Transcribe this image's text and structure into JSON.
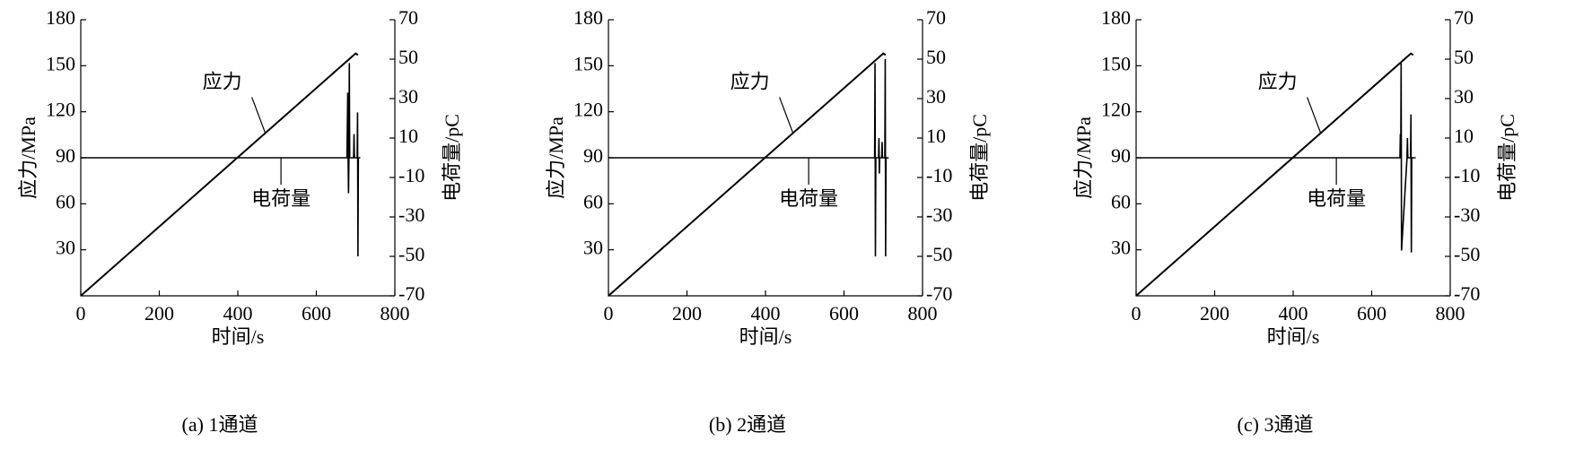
{
  "chart_data": [
    {
      "type": "line",
      "caption": "(a)  1通道",
      "x_label": "时间/s",
      "y_label": "应力/MPa",
      "y2_label": "电荷量/pC",
      "xlim": [
        0,
        800
      ],
      "xticks": [
        0,
        200,
        400,
        600,
        800
      ],
      "ylim": [
        0,
        180
      ],
      "yticks": [
        30,
        60,
        90,
        120,
        150,
        180
      ],
      "y2lim": [
        -70,
        70
      ],
      "y2ticks": [
        -70,
        -50,
        -30,
        -10,
        10,
        30,
        50,
        70
      ],
      "series": [
        {
          "name": "应力",
          "color": "#000000",
          "x": [
            0,
            700,
            706
          ],
          "values": [
            0,
            158,
            157
          ]
        },
        {
          "name": "电荷量",
          "color": "#000000",
          "axis": "y2",
          "x": [
            0,
            678,
            680,
            681,
            682,
            683,
            684,
            685,
            695,
            696,
            697,
            704,
            705,
            706,
            707,
            712
          ],
          "values": [
            0,
            0,
            33,
            0,
            -18,
            0,
            48,
            0,
            0,
            12,
            0,
            0,
            23,
            -50,
            0,
            0
          ]
        }
      ]
    },
    {
      "type": "line",
      "caption": "(b)  2通道",
      "x_label": "时间/s",
      "y_label": "应力/MPa",
      "y2_label": "电荷量/pC",
      "xlim": [
        0,
        800
      ],
      "xticks": [
        0,
        200,
        400,
        600,
        800
      ],
      "ylim": [
        0,
        180
      ],
      "yticks": [
        30,
        60,
        90,
        120,
        150,
        180
      ],
      "y2lim": [
        -70,
        70
      ],
      "y2ticks": [
        -70,
        -50,
        -30,
        -10,
        10,
        30,
        50,
        70
      ],
      "series": [
        {
          "name": "应力",
          "color": "#000000",
          "x": [
            0,
            700,
            706
          ],
          "values": [
            0,
            158,
            157
          ]
        },
        {
          "name": "电荷量",
          "color": "#000000",
          "axis": "y2",
          "x": [
            0,
            678,
            679,
            680,
            681,
            688,
            689,
            690,
            691,
            696,
            697,
            698,
            704,
            705,
            706,
            707,
            714
          ],
          "values": [
            0,
            0,
            48,
            -50,
            0,
            0,
            10,
            -8,
            0,
            0,
            8,
            0,
            0,
            50,
            -50,
            0,
            0
          ]
        }
      ]
    },
    {
      "type": "line",
      "caption": "(c)  3通道",
      "x_label": "时间/s",
      "y_label": "应力/MPa",
      "y2_label": "电荷量/pC",
      "xlim": [
        0,
        800
      ],
      "xticks": [
        0,
        200,
        400,
        600,
        800
      ],
      "ylim": [
        0,
        180
      ],
      "yticks": [
        30,
        60,
        90,
        120,
        150,
        180
      ],
      "y2lim": [
        -70,
        70
      ],
      "y2ticks": [
        -70,
        -50,
        -30,
        -10,
        10,
        30,
        50,
        70
      ],
      "series": [
        {
          "name": "应力",
          "color": "#000000",
          "x": [
            0,
            700,
            706
          ],
          "values": [
            0,
            158,
            157
          ]
        },
        {
          "name": "电荷量",
          "color": "#000000",
          "axis": "y2",
          "x": [
            0,
            672,
            673,
            674,
            675,
            676,
            690,
            691,
            692,
            699,
            700,
            701,
            702,
            712
          ],
          "values": [
            0,
            0,
            12,
            0,
            48,
            -47,
            0,
            10,
            0,
            0,
            22,
            -48,
            0,
            0
          ]
        }
      ]
    }
  ]
}
